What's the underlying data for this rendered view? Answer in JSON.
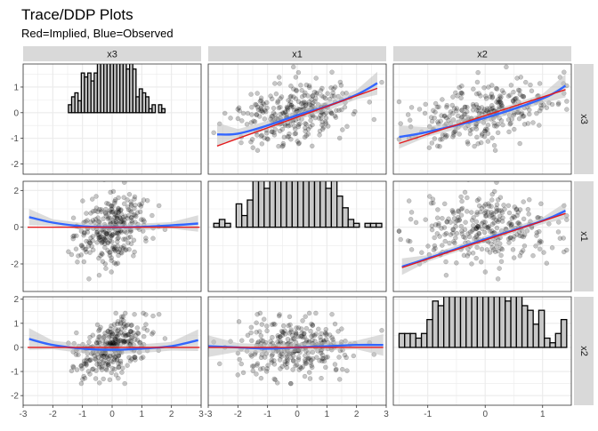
{
  "title": "Trace/DDP Plots",
  "subtitle": "Red=Implied, Blue=Observed",
  "colors": {
    "implied": "#E41A1C",
    "observed": "#3366FF",
    "points": "#000000",
    "panel_bg": "#FFFFFF",
    "grid": "#EBEBEB",
    "strip": "#D9D9D9",
    "bar_fill": "#C8C8C8",
    "ribbon": "#C0C0C0"
  },
  "chart_data": {
    "type": "scatter",
    "layout": "scatterplot-matrix",
    "column_vars": [
      "x3",
      "x1",
      "x2"
    ],
    "row_vars": [
      "x3",
      "x1",
      "x2"
    ],
    "x_ranges": {
      "x3": [
        -3,
        3
      ],
      "x1": [
        -3,
        3
      ],
      "x2": [
        -1.6,
        1.5
      ]
    },
    "y_ranges": {
      "x3": [
        -2.4,
        1.9
      ],
      "x1": [
        -3.5,
        2.5
      ],
      "x2": [
        -2.4,
        2.1
      ]
    },
    "x_ticks": {
      "x3": [
        -3,
        -2,
        -1,
        0,
        1,
        2,
        3
      ],
      "x1": [
        -3,
        -2,
        -1,
        0,
        1,
        2,
        3
      ],
      "x2": [
        -1,
        0,
        1
      ]
    },
    "y_ticks": {
      "x3": [
        -2,
        -1,
        0,
        1
      ],
      "x1": [
        -2,
        0,
        2
      ],
      "x2": [
        -2,
        -1,
        0,
        1,
        2
      ]
    },
    "n_points": 300,
    "diagonal": "histogram",
    "panels": [
      {
        "row": "x3",
        "col": "x1",
        "points": "scatter",
        "implied_line": [
          [
            -2.7,
            -1.3
          ],
          [
            2.7,
            0.95
          ]
        ],
        "observed_curve": [
          [
            -2.7,
            -0.85
          ],
          [
            -2,
            -0.82
          ],
          [
            -1,
            -0.5
          ],
          [
            0,
            -0.1
          ],
          [
            1,
            0.25
          ],
          [
            2,
            0.7
          ],
          [
            2.7,
            1.15
          ]
        ]
      },
      {
        "row": "x3",
        "col": "x2",
        "points": "scatter",
        "implied_line": [
          [
            -1.5,
            -1.2
          ],
          [
            1.4,
            0.9
          ]
        ],
        "observed_curve": [
          [
            -1.5,
            -0.95
          ],
          [
            -1,
            -0.75
          ],
          [
            0,
            -0.2
          ],
          [
            1,
            0.55
          ],
          [
            1.4,
            1.05
          ]
        ]
      },
      {
        "row": "x1",
        "col": "x3",
        "points": "scatter",
        "implied_line": [
          [
            -2.85,
            0
          ],
          [
            2.95,
            0
          ]
        ],
        "observed_curve": [
          [
            -2.8,
            0.55
          ],
          [
            -2,
            0.25
          ],
          [
            -1,
            0.05
          ],
          [
            0,
            0
          ],
          [
            1,
            0.02
          ],
          [
            2,
            0.1
          ],
          [
            2.9,
            0.2
          ]
        ]
      },
      {
        "row": "x1",
        "col": "x2",
        "points": "scatter",
        "implied_line": [
          [
            -1.45,
            -2.2
          ],
          [
            1.4,
            0.75
          ]
        ],
        "observed_curve": [
          [
            -1.45,
            -2.15
          ],
          [
            -1,
            -1.7
          ],
          [
            0,
            -0.65
          ],
          [
            1,
            0.35
          ],
          [
            1.4,
            0.9
          ]
        ]
      },
      {
        "row": "x2",
        "col": "x3",
        "points": "scatter",
        "implied_line": [
          [
            -2.85,
            0
          ],
          [
            2.95,
            0
          ]
        ],
        "observed_curve": [
          [
            -2.8,
            0.35
          ],
          [
            -2,
            0.1
          ],
          [
            -1,
            -0.05
          ],
          [
            0,
            -0.1
          ],
          [
            1,
            -0.05
          ],
          [
            2,
            0.05
          ],
          [
            2.9,
            0.3
          ]
        ]
      },
      {
        "row": "x2",
        "col": "x1",
        "points": "scatter",
        "implied_line": [
          [
            -3,
            0
          ],
          [
            2.9,
            0
          ]
        ],
        "observed_curve": [
          [
            -3,
            0.05
          ],
          [
            -2,
            0
          ],
          [
            -1,
            -0.05
          ],
          [
            0,
            0
          ],
          [
            1,
            0.05
          ],
          [
            2,
            0.1
          ],
          [
            2.9,
            0.1
          ]
        ]
      }
    ]
  }
}
